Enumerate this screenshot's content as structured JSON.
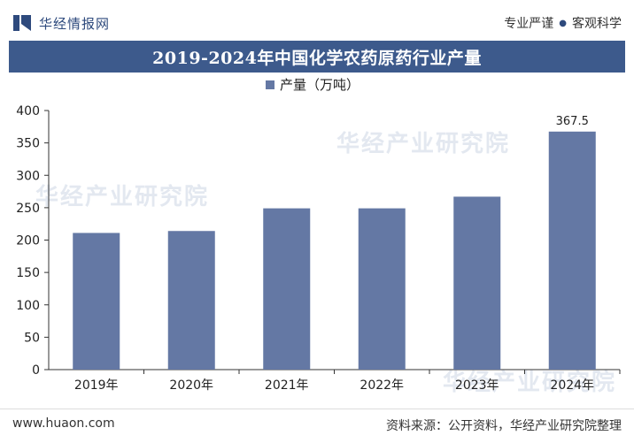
{
  "header": {
    "brand_name": "华经情报网",
    "slogan_left": "专业严谨",
    "slogan_dot": "●",
    "slogan_right": "客观科学"
  },
  "title": "2019-2024年中国化学农药原药行业产量",
  "watermark": "华经产业研究院",
  "footer": {
    "site": "www.huaon.com",
    "source": "资料来源：公开资料，华经产业研究院整理"
  },
  "colors": {
    "bar": "#6478a4",
    "title_bg": "#3d5a8c",
    "brand": "#2e4a7d"
  },
  "chart_data": {
    "type": "bar",
    "categories": [
      "2019年",
      "2020年",
      "2021年",
      "2022年",
      "2023年",
      "2024年"
    ],
    "series": [
      {
        "name": "产量（万吨）",
        "values": [
          211,
          214,
          249,
          249,
          267,
          367.5
        ]
      }
    ],
    "data_labels": [
      "",
      "",
      "",
      "",
      "",
      "367.5"
    ],
    "ylim": [
      0,
      400
    ],
    "yticks": [
      0,
      50,
      100,
      150,
      200,
      250,
      300,
      350,
      400
    ],
    "legend_position": "top-center",
    "grid": false
  }
}
